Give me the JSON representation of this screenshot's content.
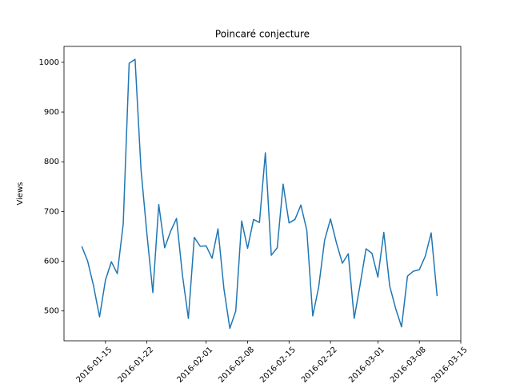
{
  "chart_data": {
    "type": "line",
    "title": "Poincaré conjecture",
    "ylabel": "Views",
    "x": [
      "2016-01-11",
      "2016-01-12",
      "2016-01-13",
      "2016-01-14",
      "2016-01-15",
      "2016-01-16",
      "2016-01-17",
      "2016-01-18",
      "2016-01-19",
      "2016-01-20",
      "2016-01-21",
      "2016-01-22",
      "2016-01-23",
      "2016-01-24",
      "2016-01-25",
      "2016-01-26",
      "2016-01-27",
      "2016-01-28",
      "2016-01-29",
      "2016-01-30",
      "2016-01-31",
      "2016-02-01",
      "2016-02-02",
      "2016-02-03",
      "2016-02-04",
      "2016-02-05",
      "2016-02-06",
      "2016-02-07",
      "2016-02-08",
      "2016-02-09",
      "2016-02-10",
      "2016-02-11",
      "2016-02-12",
      "2016-02-13",
      "2016-02-14",
      "2016-02-15",
      "2016-02-16",
      "2016-02-17",
      "2016-02-18",
      "2016-02-19",
      "2016-02-20",
      "2016-02-21",
      "2016-02-22",
      "2016-02-23",
      "2016-02-24",
      "2016-02-25",
      "2016-02-26",
      "2016-02-27",
      "2016-02-28",
      "2016-02-29",
      "2016-03-01",
      "2016-03-02",
      "2016-03-03",
      "2016-03-04",
      "2016-03-05",
      "2016-03-06",
      "2016-03-07",
      "2016-03-08",
      "2016-03-09",
      "2016-03-10",
      "2016-03-11"
    ],
    "series": [
      {
        "name": "Views",
        "color": "#1f77b4",
        "values": [
          630,
          600,
          550,
          488,
          562,
          599,
          575,
          675,
          998,
          1006,
          785,
          655,
          537,
          714,
          627,
          660,
          686,
          572,
          485,
          648,
          630,
          631,
          606,
          665,
          545,
          465,
          500,
          681,
          626,
          684,
          678,
          818,
          612,
          627,
          755,
          677,
          684,
          713,
          662,
          490,
          548,
          642,
          685,
          637,
          596,
          615,
          485,
          553,
          625,
          616,
          568,
          658,
          550,
          505,
          468,
          570,
          580,
          583,
          610,
          657,
          530
        ]
      }
    ],
    "xlim": [
      "2016-01-08",
      "2016-03-15"
    ],
    "xticks": [
      "2016-01-15",
      "2016-01-22",
      "2016-02-01",
      "2016-02-08",
      "2016-02-15",
      "2016-02-22",
      "2016-03-01",
      "2016-03-08",
      "2016-03-15"
    ],
    "ylim": [
      440,
      1032
    ],
    "yticks": [
      500,
      600,
      700,
      800,
      900,
      1000
    ]
  }
}
